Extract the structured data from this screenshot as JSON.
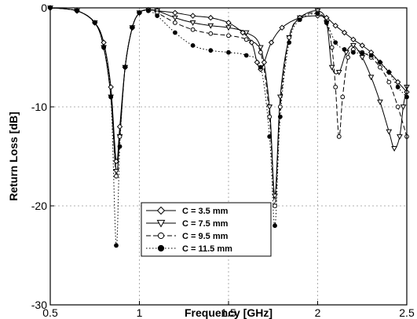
{
  "chart_data": {
    "type": "line",
    "xlabel": "Frequency [GHz]",
    "ylabel": "Return Loss [dB]",
    "xlim": [
      0.5,
      2.5
    ],
    "ylim": [
      -30,
      0
    ],
    "xticks": [
      "0.5",
      "1",
      "1.5",
      "2",
      "2.5"
    ],
    "xtick_values": [
      0.5,
      1,
      1.5,
      2,
      2.5
    ],
    "yticks": [
      "0",
      "-10",
      "-20",
      "-30"
    ],
    "ytick_values": [
      0,
      -10,
      -20,
      -30
    ],
    "grid": true,
    "legend_position": "lower-center",
    "series": [
      {
        "name": "C = 3.5 mm",
        "marker": "diamond",
        "dash": "solid",
        "x": [
          0.5,
          0.65,
          0.75,
          0.8,
          0.84,
          0.87,
          0.89,
          0.92,
          0.96,
          1.0,
          1.05,
          1.1,
          1.2,
          1.3,
          1.4,
          1.5,
          1.58,
          1.63,
          1.66,
          1.68,
          1.7,
          1.74,
          1.8,
          1.9,
          2.0,
          2.05,
          2.1,
          2.15,
          2.2,
          2.25,
          2.3,
          2.35,
          2.4,
          2.45,
          2.5
        ],
        "y": [
          0,
          -0.3,
          -1.5,
          -3.5,
          -8,
          -15.5,
          -12,
          -6,
          -2,
          -0.5,
          -0.2,
          -0.3,
          -0.5,
          -0.8,
          -1.0,
          -1.5,
          -2.5,
          -3.5,
          -5.5,
          -6.2,
          -5.5,
          -3.5,
          -2,
          -1,
          -0.8,
          -1.0,
          -1.8,
          -2.5,
          -3.2,
          -3.8,
          -4.5,
          -5.5,
          -6.5,
          -7.5,
          -8.5
        ]
      },
      {
        "name": "C = 7.5 mm",
        "marker": "triangle-down",
        "dash": "solid",
        "x": [
          0.5,
          0.65,
          0.75,
          0.8,
          0.84,
          0.87,
          0.89,
          0.92,
          0.96,
          1.0,
          1.05,
          1.1,
          1.2,
          1.3,
          1.4,
          1.5,
          1.6,
          1.68,
          1.73,
          1.76,
          1.79,
          1.84,
          1.9,
          2.0,
          2.05,
          2.08,
          2.12,
          2.16,
          2.2,
          2.25,
          2.3,
          2.35,
          2.4,
          2.43,
          2.46,
          2.48,
          2.5
        ],
        "y": [
          0,
          -0.3,
          -1.5,
          -4,
          -9,
          -16.5,
          -13,
          -6,
          -2,
          -0.5,
          -0.2,
          -0.3,
          -1.0,
          -1.5,
          -1.8,
          -2.0,
          -2.5,
          -4,
          -10,
          -19,
          -9,
          -3,
          -1,
          -0.3,
          -1.5,
          -6,
          -6.5,
          -4.5,
          -3.8,
          -5,
          -7,
          -9.5,
          -12.5,
          -14.2,
          -13,
          -10,
          -8
        ]
      },
      {
        "name": "C = 9.5 mm",
        "marker": "circle-open",
        "dash": "dashed",
        "x": [
          0.5,
          0.65,
          0.75,
          0.8,
          0.84,
          0.87,
          0.89,
          0.92,
          0.96,
          1.0,
          1.05,
          1.1,
          1.2,
          1.3,
          1.4,
          1.5,
          1.6,
          1.68,
          1.73,
          1.76,
          1.79,
          1.84,
          1.9,
          2.0,
          2.05,
          2.08,
          2.1,
          2.12,
          2.14,
          2.17,
          2.2,
          2.25,
          2.3,
          2.35,
          2.4,
          2.45,
          2.5
        ],
        "y": [
          0,
          -0.3,
          -1.5,
          -4,
          -9,
          -17,
          -13,
          -6,
          -2,
          -0.5,
          -0.2,
          -0.5,
          -1.5,
          -2.2,
          -2.6,
          -2.8,
          -3.2,
          -4.5,
          -11,
          -20,
          -10,
          -3,
          -1,
          -0.5,
          -1.5,
          -4,
          -8,
          -13,
          -9,
          -5,
          -4.2,
          -4.5,
          -5,
          -6,
          -7.5,
          -10,
          -13
        ]
      },
      {
        "name": "C = 11.5 mm",
        "marker": "circle-filled",
        "dash": "dotted",
        "x": [
          0.5,
          0.65,
          0.75,
          0.8,
          0.84,
          0.87,
          0.89,
          0.92,
          0.96,
          1.0,
          1.05,
          1.1,
          1.2,
          1.3,
          1.4,
          1.5,
          1.6,
          1.68,
          1.73,
          1.76,
          1.79,
          1.84,
          1.9,
          2.0,
          2.05,
          2.1,
          2.15,
          2.2,
          2.25,
          2.3,
          2.35,
          2.4,
          2.45,
          2.5
        ],
        "y": [
          0,
          -0.3,
          -1.5,
          -4,
          -9,
          -24,
          -14,
          -6,
          -2,
          -0.5,
          -0.3,
          -0.8,
          -2.5,
          -3.8,
          -4.3,
          -4.5,
          -4.8,
          -6,
          -13,
          -22,
          -11,
          -3.5,
          -1.2,
          -0.6,
          -1.5,
          -3.5,
          -4.2,
          -4.5,
          -4.6,
          -4.8,
          -5.5,
          -6.5,
          -8,
          -9
        ]
      }
    ]
  }
}
